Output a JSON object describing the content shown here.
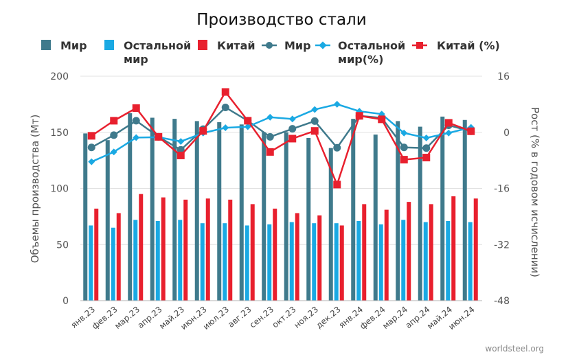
{
  "chart_data": {
    "type": "bar",
    "title": "Производство стали",
    "ylabel": "Объемы производства (Мт)",
    "y2label": "Рост (% в годовом исчислении)",
    "source": "worldsteel.org",
    "ylim": [
      0,
      200
    ],
    "yticks": [
      "200",
      "150",
      "100",
      "50",
      "0"
    ],
    "y2lim": [
      -48,
      16
    ],
    "y2ticks": [
      "16",
      "0",
      "-16",
      "-32",
      "-48"
    ],
    "categories": [
      "янв.23",
      "фев.23",
      "мар.23",
      "апр.23",
      "май.23",
      "июн.23",
      "июл.23",
      "авг.23",
      "сен.23",
      "окт.23",
      "ноя.23",
      "дек.23",
      "янв.24",
      "фев.24",
      "мар.24",
      "апр.24",
      "май.24",
      "июн.24"
    ],
    "legend": [
      {
        "label": "Мир",
        "kind": "bar",
        "color": "#3f7a8c"
      },
      {
        "label": "Остальной мир",
        "kind": "bar",
        "color": "#1aa9e3"
      },
      {
        "label": "Китай",
        "kind": "bar",
        "color": "#e8202e"
      },
      {
        "label": "Мир",
        "kind": "line",
        "color": "#3f7a8c"
      },
      {
        "label": "Остальной мир(%)",
        "kind": "line",
        "color": "#1aa9e3"
      },
      {
        "label": "Китай (%)",
        "kind": "line",
        "color": "#e8202e"
      }
    ],
    "bar_series": [
      {
        "name": "Мир",
        "color": "#3f7a8c",
        "values": [
          149,
          143,
          167,
          163,
          162,
          160,
          159,
          157,
          150,
          150,
          145,
          136,
          162,
          148,
          160,
          155,
          164,
          161
        ]
      },
      {
        "name": "Остальной мир",
        "color": "#1aa9e3",
        "values": [
          67,
          65,
          72,
          71,
          72,
          69,
          69,
          67,
          68,
          70,
          69,
          69,
          71,
          68,
          72,
          70,
          71,
          70
        ]
      },
      {
        "name": "Китай",
        "color": "#e8202e",
        "values": [
          82,
          78,
          95,
          92,
          90,
          91,
          90,
          86,
          82,
          78,
          76,
          67,
          86,
          81,
          88,
          86,
          93,
          91
        ]
      }
    ],
    "line_series": [
      {
        "name": "Мир",
        "color": "#3f7a8c",
        "marker": "circle",
        "values": [
          -4.3,
          -0.8,
          3.3,
          -1.3,
          -5.0,
          0.9,
          7.1,
          3.3,
          -1.3,
          1.0,
          3.2,
          -4.4,
          4.7,
          4.1,
          -4.3,
          -4.5,
          2.0,
          0.3
        ]
      },
      {
        "name": "Остальной мир(%)",
        "color": "#1aa9e3",
        "marker": "diamond",
        "values": [
          -8.4,
          -5.6,
          -1.5,
          -1.4,
          -2.6,
          -0.2,
          1.3,
          1.6,
          4.3,
          3.8,
          6.5,
          8.0,
          6.0,
          5.2,
          -0.2,
          -1.6,
          -0.2,
          1.4
        ]
      },
      {
        "name": "Китай (%)",
        "color": "#e8202e",
        "marker": "square",
        "values": [
          -1.0,
          3.3,
          6.9,
          -1.3,
          -6.6,
          0.4,
          11.5,
          3.3,
          -5.6,
          -1.8,
          0.4,
          -14.9,
          4.7,
          3.7,
          -7.8,
          -7.2,
          2.7,
          0.3
        ]
      }
    ]
  }
}
